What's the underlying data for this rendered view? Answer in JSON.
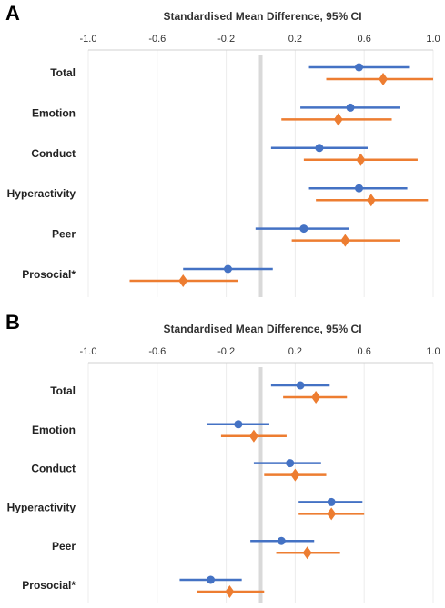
{
  "chart_data": [
    {
      "panel": "A",
      "type": "forest",
      "xlabel": "Standardised Mean Difference, 95% CI",
      "xlim": [
        -1.0,
        1.0
      ],
      "xticks": [
        "-1.0",
        "-0.6",
        "-0.2",
        "0.2",
        "0.6",
        "1.0"
      ],
      "reference_line": 0,
      "categories": [
        "Total",
        "Emotion",
        "Conduct",
        "Hyperactivity",
        "Peer",
        "Prosocial*"
      ],
      "series": [
        {
          "marker": "circle",
          "color": "#4472C4",
          "estimates": [
            0.57,
            0.52,
            0.34,
            0.57,
            0.25,
            -0.19
          ],
          "lower": [
            0.28,
            0.23,
            0.06,
            0.28,
            -0.03,
            -0.45
          ],
          "upper": [
            0.86,
            0.81,
            0.62,
            0.85,
            0.51,
            0.07
          ]
        },
        {
          "marker": "diamond",
          "color": "#ED7D31",
          "estimates": [
            0.71,
            0.45,
            0.58,
            0.64,
            0.49,
            -0.45
          ],
          "lower": [
            0.38,
            0.12,
            0.25,
            0.32,
            0.18,
            -0.76
          ],
          "upper": [
            1.0,
            0.76,
            0.91,
            0.97,
            0.81,
            -0.13
          ]
        }
      ]
    },
    {
      "panel": "B",
      "type": "forest",
      "xlabel": "Standardised Mean Difference, 95% CI",
      "xlim": [
        -1.0,
        1.0
      ],
      "xticks": [
        "-1.0",
        "-0.6",
        "-0.2",
        "0.2",
        "0.6",
        "1.0"
      ],
      "reference_line": 0,
      "categories": [
        "Total",
        "Emotion",
        "Conduct",
        "Hyperactivity",
        "Peer",
        "Prosocial*"
      ],
      "series": [
        {
          "marker": "circle",
          "color": "#4472C4",
          "estimates": [
            0.23,
            -0.13,
            0.17,
            0.41,
            0.12,
            -0.29
          ],
          "lower": [
            0.06,
            -0.31,
            -0.04,
            0.22,
            -0.06,
            -0.47
          ],
          "upper": [
            0.4,
            0.05,
            0.35,
            0.59,
            0.31,
            -0.11
          ]
        },
        {
          "marker": "diamond",
          "color": "#ED7D31",
          "estimates": [
            0.32,
            -0.04,
            0.2,
            0.41,
            0.27,
            -0.18
          ],
          "lower": [
            0.13,
            -0.23,
            0.02,
            0.22,
            0.09,
            -0.37
          ],
          "upper": [
            0.5,
            0.15,
            0.38,
            0.6,
            0.46,
            0.02
          ]
        }
      ]
    }
  ]
}
